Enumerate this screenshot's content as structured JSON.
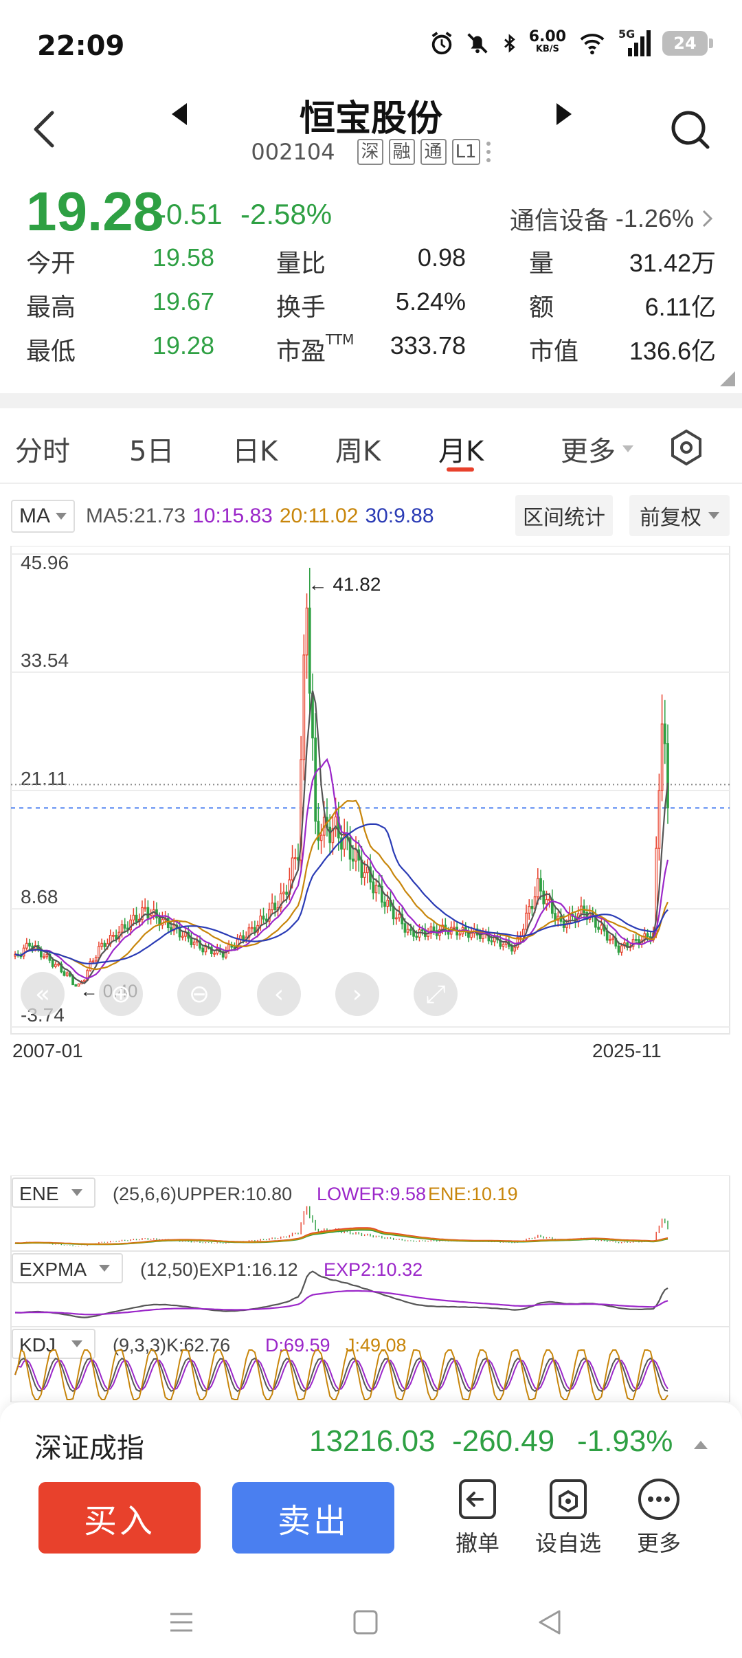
{
  "status": {
    "time": "22:09",
    "net_speed_value": "6.00",
    "net_speed_unit": "KB/S",
    "signal_label": "5G",
    "battery": "24"
  },
  "header": {
    "name": "恒宝股份",
    "code": "002104",
    "tags": [
      "深",
      "融",
      "通",
      "L1"
    ]
  },
  "quote": {
    "price": "19.28",
    "change": "-0.51",
    "change_pct": "-2.58%",
    "sector_name": "通信设备",
    "sector_pct": "-1.26%",
    "rows": [
      [
        {
          "label": "今开",
          "value": "19.58",
          "color": "green"
        },
        {
          "label": "量比",
          "value": "0.98",
          "color": "dark"
        },
        {
          "label": "量",
          "value": "31.42万",
          "color": "dark"
        }
      ],
      [
        {
          "label": "最高",
          "value": "19.67",
          "color": "green"
        },
        {
          "label": "换手",
          "value": "5.24%",
          "color": "dark"
        },
        {
          "label": "额",
          "value": "6.11亿",
          "color": "dark"
        }
      ],
      [
        {
          "label": "最低",
          "value": "19.28",
          "color": "green"
        },
        {
          "label": "市盈",
          "label_sup": "TTM",
          "value": "333.78",
          "color": "dark"
        },
        {
          "label": "市值",
          "value": "136.6亿",
          "color": "dark"
        }
      ]
    ]
  },
  "tabs": [
    "分时",
    "5日",
    "日K",
    "周K",
    "月K",
    "更多"
  ],
  "active_tab": "月K",
  "chart": {
    "indicator_select": "MA",
    "ma_values": [
      {
        "text": "MA5:21.73",
        "color": "#555555"
      },
      {
        "text": "10:15.83",
        "color": "#9b27c9"
      },
      {
        "text": "20:11.02",
        "color": "#c8860b"
      },
      {
        "text": "30:9.88",
        "color": "#2a3bb5"
      }
    ],
    "range_stats_btn": "区间统计",
    "adjust_select": "前复权",
    "y_labels": [
      "45.96",
      "33.54",
      "21.11",
      "8.68",
      "-3.74"
    ],
    "high_mark": "41.82",
    "low_mark": "0.40",
    "x_start": "2007-01",
    "x_end": "2025-11",
    "ene_select": "ENE",
    "ene_params": "(25,6,6)UPPER:10.80",
    "ene_lower": "LOWER:9.58",
    "ene_val": "ENE:10.19",
    "expma_select": "EXPMA",
    "expma_params": "(12,50)EXP1:16.12",
    "expma_exp2": "EXP2:10.32",
    "kdj_select": "KDJ",
    "kdj_params": "(9,3,3)K:62.76",
    "kdj_d": "D:69.59",
    "kdj_j": "J:49.08",
    "colors": {
      "up": "#e8412c",
      "down": "#2ea043",
      "ma5": "#555555",
      "ma10": "#9b27c9",
      "ma20": "#c8860b",
      "ma30": "#2a3bb5"
    }
  },
  "chart_data": {
    "type": "candlestick",
    "interval": "monthly",
    "x_range": [
      "2007-01",
      "2025-11"
    ],
    "ylim": [
      -3.74,
      45.96
    ],
    "y_ticks": [
      45.96,
      33.54,
      21.11,
      8.68,
      -3.74
    ],
    "annotations": [
      {
        "label": "41.82",
        "kind": "high"
      },
      {
        "label": "0.40",
        "kind": "low"
      }
    ],
    "close_path": [
      {
        "x": "2007-01",
        "y": 3.5
      },
      {
        "x": "2007-06",
        "y": 5.0
      },
      {
        "x": "2008-06",
        "y": 2.0
      },
      {
        "x": "2008-11",
        "y": 0.4
      },
      {
        "x": "2009-06",
        "y": 4.5
      },
      {
        "x": "2010-10",
        "y": 8.5
      },
      {
        "x": "2011-06",
        "y": 7.0
      },
      {
        "x": "2012-06",
        "y": 4.5
      },
      {
        "x": "2013-01",
        "y": 4.0
      },
      {
        "x": "2014-01",
        "y": 7.0
      },
      {
        "x": "2014-10",
        "y": 10.0
      },
      {
        "x": "2015-03",
        "y": 15.0
      },
      {
        "x": "2015-06",
        "y": 41.82
      },
      {
        "x": "2015-09",
        "y": 17.0
      },
      {
        "x": "2016-04",
        "y": 17.0
      },
      {
        "x": "2017-01",
        "y": 13.0
      },
      {
        "x": "2017-10",
        "y": 9.0
      },
      {
        "x": "2018-06",
        "y": 6.0
      },
      {
        "x": "2019-06",
        "y": 6.5
      },
      {
        "x": "2020-06",
        "y": 6.0
      },
      {
        "x": "2021-06",
        "y": 4.5
      },
      {
        "x": "2022-02",
        "y": 11.0
      },
      {
        "x": "2022-10",
        "y": 7.0
      },
      {
        "x": "2023-06",
        "y": 8.5
      },
      {
        "x": "2024-06",
        "y": 4.5
      },
      {
        "x": "2025-06",
        "y": 6.0
      },
      {
        "x": "2025-09",
        "y": 30.0
      },
      {
        "x": "2025-11",
        "y": 19.28
      }
    ],
    "series": [
      {
        "name": "MA5",
        "last": 21.73
      },
      {
        "name": "10",
        "last": 15.83
      },
      {
        "name": "20",
        "last": 11.02
      },
      {
        "name": "30",
        "last": 9.88
      }
    ]
  },
  "bottom": {
    "index_name": "深证成指",
    "index_value": "13216.03",
    "index_change": "-260.49",
    "index_pct": "-1.93%",
    "buy_label": "买入",
    "sell_label": "卖出",
    "actions": [
      {
        "label": "撤单",
        "icon": "cancel-order-icon"
      },
      {
        "label": "设自选",
        "icon": "add-watchlist-icon"
      },
      {
        "label": "更多",
        "icon": "more-icon"
      }
    ]
  }
}
